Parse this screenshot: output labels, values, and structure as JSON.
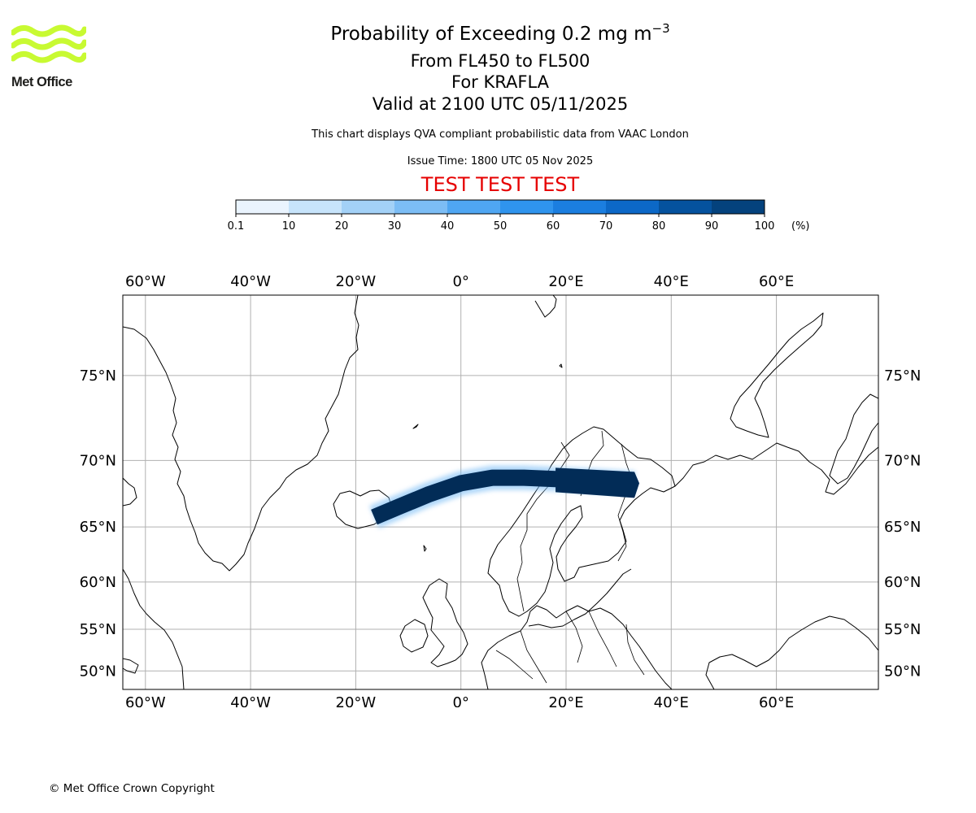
{
  "logo": {
    "text": "Met Office",
    "color": "#c8fa32"
  },
  "header": {
    "title": "Probability of Exceeding 0.2 mg m",
    "title_exponent": "−3",
    "levels": "From FL450 to FL500",
    "volcano": "For KRAFLA",
    "valid": "Valid at 2100 UTC 05/11/2025",
    "description": "This chart displays QVA compliant probabilistic data from VAAC London",
    "issue": "Issue Time: 1800 UTC 05 Nov 2025",
    "test_banner": "TEST TEST TEST"
  },
  "colorbar": {
    "ticks": [
      "0.1",
      "10",
      "20",
      "30",
      "40",
      "50",
      "60",
      "70",
      "80",
      "90",
      "100"
    ],
    "unit": "(%)",
    "colors": [
      "#eaf4fe",
      "#c7e4fb",
      "#a3d1f7",
      "#7cbdf5",
      "#4fa6f2",
      "#2f94ee",
      "#1b7ee0",
      "#0c68c7",
      "#05529e",
      "#04427d",
      "#022c57"
    ]
  },
  "map": {
    "lon_ticks": [
      "60°W",
      "40°W",
      "20°W",
      "0°",
      "20°E",
      "40°E",
      "60°E"
    ],
    "lon_values": [
      -60,
      -40,
      -20,
      0,
      20,
      40,
      60
    ],
    "lat_ticks": [
      "75°N",
      "70°N",
      "65°N",
      "60°N",
      "55°N",
      "50°N"
    ],
    "lat_values": [
      75,
      70,
      65,
      60,
      55,
      50
    ],
    "extent": {
      "lon_min": -64.3,
      "lon_max": 79.4,
      "lat_min": 47.6,
      "lat_max": 78.6
    },
    "plume": {
      "probability_percent": 100,
      "path": [
        [
          -16.5,
          65.8
        ],
        [
          -12,
          66.6
        ],
        [
          -6,
          67.6
        ],
        [
          0,
          68.4
        ],
        [
          6,
          68.8
        ],
        [
          12,
          68.8
        ],
        [
          18,
          68.7
        ],
        [
          24,
          68.6
        ],
        [
          29,
          68.5
        ],
        [
          33,
          68.4
        ]
      ]
    }
  },
  "footer": {
    "copyright": "© Met Office Crown Copyright"
  }
}
